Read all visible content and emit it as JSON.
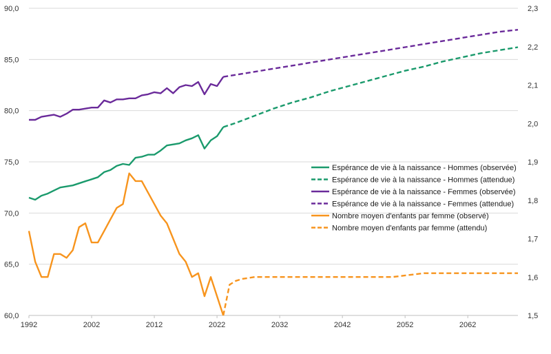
{
  "chart_data": {
    "type": "line",
    "title": "",
    "xlabel": "",
    "ylabel": "",
    "y2label": "",
    "x_ticks": [
      1992,
      2002,
      2012,
      2022,
      2032,
      2042,
      2052,
      2062
    ],
    "y_left": {
      "ticks": [
        "60,0",
        "65,0",
        "70,0",
        "75,0",
        "80,0",
        "85,0",
        "90,0"
      ],
      "ylim": [
        60,
        90
      ]
    },
    "y_right": {
      "ticks": [
        "1,5",
        "1,6",
        "1,7",
        "1,8",
        "1,9",
        "2,0",
        "2,1",
        "2,2",
        "2,3"
      ],
      "ylim": [
        1.5,
        2.3
      ]
    },
    "xlim": [
      1992,
      2070
    ],
    "grid": "horizontal",
    "legend_position": "right",
    "series": [
      {
        "name": "Espérance de vie à la naissance - Hommes (observée)",
        "axis": "left",
        "color": "#1a9a6c",
        "dash": false,
        "x": [
          1992,
          1993,
          1994,
          1995,
          1996,
          1997,
          1998,
          1999,
          2000,
          2001,
          2002,
          2003,
          2004,
          2005,
          2006,
          2007,
          2008,
          2009,
          2010,
          2011,
          2012,
          2013,
          2014,
          2015,
          2016,
          2017,
          2018,
          2019,
          2020,
          2021,
          2022,
          2023
        ],
        "y": [
          71.5,
          71.3,
          71.7,
          71.9,
          72.2,
          72.5,
          72.6,
          72.7,
          72.9,
          73.1,
          73.3,
          73.5,
          74.0,
          74.2,
          74.6,
          74.8,
          74.7,
          75.4,
          75.5,
          75.7,
          75.7,
          76.1,
          76.6,
          76.7,
          76.8,
          77.1,
          77.3,
          77.6,
          76.3,
          77.1,
          77.5,
          78.4
        ]
      },
      {
        "name": "Espérance de vie à la naissance - Hommes (attendue)",
        "axis": "left",
        "color": "#1a9a6c",
        "dash": true,
        "x": [
          2023,
          2025,
          2028,
          2031,
          2034,
          2037,
          2040,
          2043,
          2046,
          2049,
          2052,
          2055,
          2058,
          2061,
          2064,
          2067,
          2070
        ],
        "y": [
          78.4,
          78.8,
          79.5,
          80.2,
          80.8,
          81.3,
          81.9,
          82.4,
          82.9,
          83.4,
          83.9,
          84.3,
          84.8,
          85.2,
          85.6,
          85.9,
          86.2
        ]
      },
      {
        "name": "Espérance de vie à la naissance - Femmes (observée)",
        "axis": "left",
        "color": "#6a2a9a",
        "dash": false,
        "x": [
          1992,
          1993,
          1994,
          1995,
          1996,
          1997,
          1998,
          1999,
          2000,
          2001,
          2002,
          2003,
          2004,
          2005,
          2006,
          2007,
          2008,
          2009,
          2010,
          2011,
          2012,
          2013,
          2014,
          2015,
          2016,
          2017,
          2018,
          2019,
          2020,
          2021,
          2022,
          2023
        ],
        "y": [
          79.1,
          79.1,
          79.4,
          79.5,
          79.6,
          79.4,
          79.7,
          80.1,
          80.1,
          80.2,
          80.3,
          80.3,
          81.0,
          80.8,
          81.1,
          81.1,
          81.2,
          81.2,
          81.5,
          81.6,
          81.8,
          81.7,
          82.2,
          81.7,
          82.3,
          82.5,
          82.4,
          82.8,
          81.6,
          82.6,
          82.4,
          83.3
        ]
      },
      {
        "name": "Espérance de vie à la naissance - Femmes (attendue)",
        "axis": "left",
        "color": "#6a2a9a",
        "dash": true,
        "x": [
          2023,
          2025,
          2028,
          2031,
          2034,
          2037,
          2040,
          2043,
          2046,
          2049,
          2052,
          2055,
          2058,
          2061,
          2064,
          2067,
          2070
        ],
        "y": [
          83.3,
          83.5,
          83.8,
          84.1,
          84.4,
          84.7,
          85.0,
          85.3,
          85.6,
          85.9,
          86.2,
          86.5,
          86.8,
          87.1,
          87.4,
          87.7,
          87.9
        ]
      },
      {
        "name": "Nombre moyen d'enfants par femme (observé)",
        "axis": "right",
        "color": "#f7941d",
        "dash": false,
        "x": [
          1992,
          1993,
          1994,
          1995,
          1996,
          1997,
          1998,
          1999,
          2000,
          2001,
          2002,
          2003,
          2004,
          2005,
          2006,
          2007,
          2008,
          2009,
          2010,
          2011,
          2012,
          2013,
          2014,
          2015,
          2016,
          2017,
          2018,
          2019,
          2020,
          2021,
          2022,
          2023
        ],
        "y": [
          1.72,
          1.64,
          1.6,
          1.6,
          1.66,
          1.66,
          1.65,
          1.67,
          1.73,
          1.74,
          1.69,
          1.69,
          1.72,
          1.75,
          1.78,
          1.79,
          1.87,
          1.85,
          1.85,
          1.82,
          1.79,
          1.76,
          1.74,
          1.7,
          1.66,
          1.64,
          1.6,
          1.61,
          1.55,
          1.6,
          1.55,
          1.5
        ]
      },
      {
        "name": "Nombre moyen d'enfants par femme (attendu)",
        "axis": "right",
        "color": "#f7941d",
        "dash": true,
        "x": [
          2023,
          2024,
          2025,
          2026,
          2028,
          2030,
          2035,
          2040,
          2045,
          2050,
          2055,
          2060,
          2065,
          2070
        ],
        "y": [
          1.5,
          1.58,
          1.59,
          1.595,
          1.6,
          1.6,
          1.6,
          1.6,
          1.6,
          1.6,
          1.61,
          1.61,
          1.61,
          1.61
        ]
      }
    ]
  }
}
